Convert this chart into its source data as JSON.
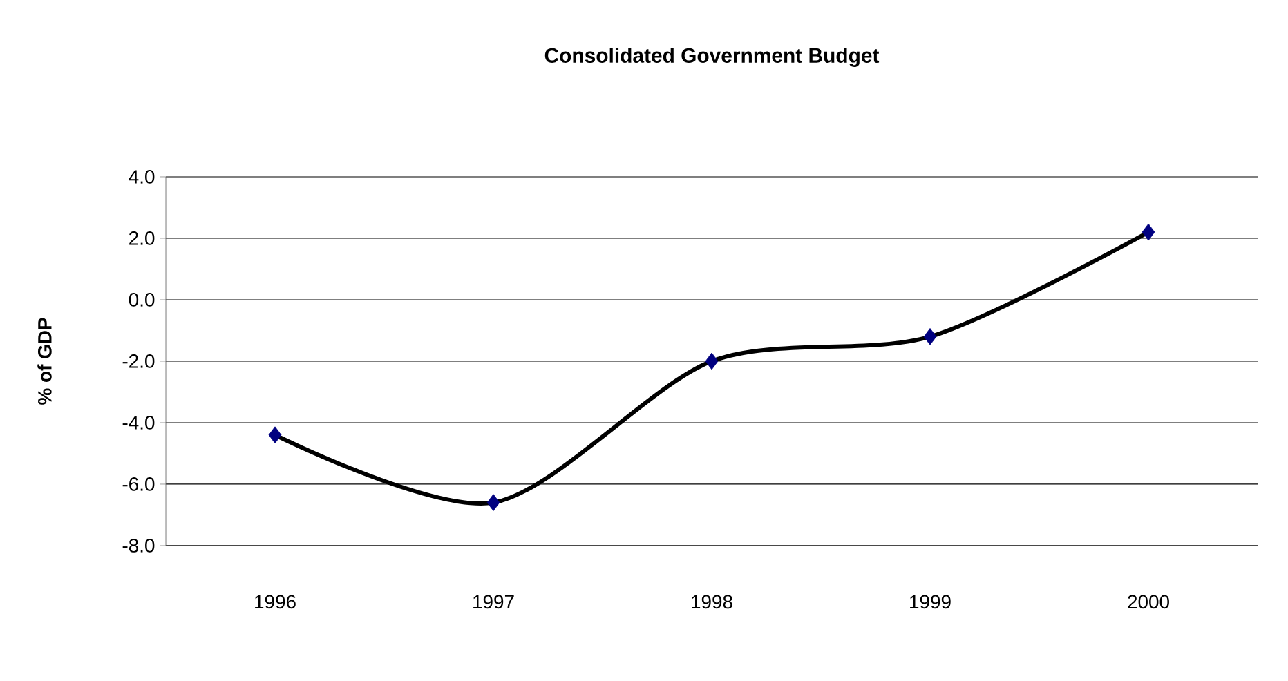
{
  "chart_data": {
    "type": "line",
    "title": "Consolidated Government Budget",
    "ylabel": "% of GDP",
    "categories": [
      "1996",
      "1997",
      "1998",
      "1999",
      "2000"
    ],
    "series": [
      {
        "color": "#000080",
        "values": [
          -4.4,
          -6.6,
          -2.0,
          -1.2,
          2.2
        ]
      }
    ],
    "ylim": [
      -8,
      4
    ],
    "yticks": [
      {
        "value": -8,
        "label": "-8.0"
      },
      {
        "value": -6,
        "label": "-6.0"
      },
      {
        "value": -4,
        "label": "-4.0"
      },
      {
        "value": -2,
        "label": "-2.0"
      },
      {
        "value": 0,
        "label": "0.0"
      },
      {
        "value": 2,
        "label": "2.0"
      },
      {
        "value": 4,
        "label": "4.0"
      }
    ],
    "grid": "y",
    "marker": "diamond",
    "line_style": "solid"
  }
}
